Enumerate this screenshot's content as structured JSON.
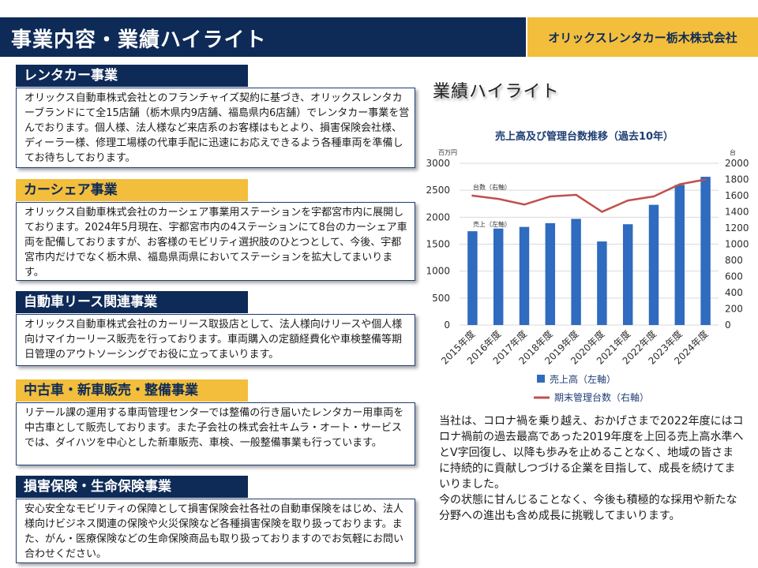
{
  "header": {
    "title": "事業内容・業績ハイライト",
    "company": "オリックスレンタカー栃木株式会社"
  },
  "sections": [
    {
      "title": "レンタカー事業",
      "body": "オリックス自動車株式会社とのフランチャイズ契約に基づき、オリックスレンタカーブランドにて全15店舗（栃木県内9店舗、福島県内6店舗）でレンタカー事業を営んでおります。個人様、法人様など来店系のお客様はもとより、損害保険会社様、ディーラー様、修理工場様の代車手配に迅速にお応えできるよう各種車両を準備してお待ちしております。"
    },
    {
      "title": "カーシェア事業",
      "body": "オリックス自動車株式会社のカーシェア事業用ステーションを宇都宮市内に展開しております。2024年5月現在、宇都宮市内の4ステーションにて8台のカーシェア車両を配備しておりますが、お客様のモビリティ選択肢のひとつとして、今後、宇都宮市内だけでなく栃木県、福島県両県においてステーションを拡大してまいります。"
    },
    {
      "title": "自動車リース関連事業",
      "body": "オリックス自動車株式会社のカーリース取扱店として、法人様向けリースや個人様向けマイカーリース販売を行っております。車両購入の定額経費化や車検整備等期日管理のアウトソーシングでお役に立ってまいります。"
    },
    {
      "title": "中古車・新車販売・整備事業",
      "body": "リテール課の運用する車両管理センターでは整備の行き届いたレンタカー用車両を中古車として販売しております。また子会社の株式会社キムラ・オート・サービスでは、ダイハツを中心とした新車販売、車検、一般整備事業も行っています。"
    },
    {
      "title": "損害保険・生命保険事業",
      "body": "安心安全なモビリティの保障として損害保険会社各社の自動車保険をはじめ、法人様向けビジネス関連の保険や火災保険など各種損害保険を取り扱っております。また、がん・医療保険などの生命保険商品も取り扱っておりますのでお気軽にお問い合わせください。"
    }
  ],
  "highlights": {
    "heading": "業績ハイライト",
    "summary": [
      "当社は、コロナ禍を乗り越え、おかげさまで2022年度にはコロナ禍前の過去最高であった2019年度を上回る売上高水準へとV字回復し、以降も歩みを止めることなく、地域の皆さまに持続的に貢献しつづける企業を目指して、成長を続けてまいりました。",
      "今の状態に甘んじることなく、今後も積極的な採用や新たな分野への進出も含め成長に挑戦してまいります。"
    ]
  },
  "chart_data": {
    "type": "bar",
    "title": "売上高及び管理台数推移（過去10年）",
    "categories": [
      "2015年度",
      "2016年度",
      "2017年度",
      "2018年度",
      "2019年度",
      "2020年度",
      "2021年度",
      "2022年度",
      "2023年度",
      "2024年度"
    ],
    "series": [
      {
        "name": "売上高（左軸）",
        "type": "bar",
        "axis": "left",
        "color": "#2f6bbf",
        "values": [
          1740,
          1790,
          1820,
          1890,
          1970,
          1550,
          1870,
          2230,
          2600,
          2750
        ]
      },
      {
        "name": "期末管理台数（右軸）",
        "type": "line",
        "axis": "right",
        "color": "#c0504d",
        "values": [
          1600,
          1560,
          1490,
          1590,
          1610,
          1400,
          1540,
          1590,
          1740,
          1800
        ]
      }
    ],
    "left_axis": {
      "unit": "百万円",
      "min": 0,
      "max": 3000,
      "ticks": [
        0,
        500,
        1000,
        1500,
        2000,
        2500,
        3000
      ]
    },
    "right_axis": {
      "unit": "台",
      "min": 0,
      "max": 2000,
      "ticks": [
        0,
        200,
        400,
        600,
        800,
        1000,
        1200,
        1400,
        1600,
        1800,
        2000
      ]
    },
    "annotations": [
      "台数（右軸）",
      "売上（左軸）"
    ],
    "grid": true,
    "legend_position": "bottom"
  }
}
